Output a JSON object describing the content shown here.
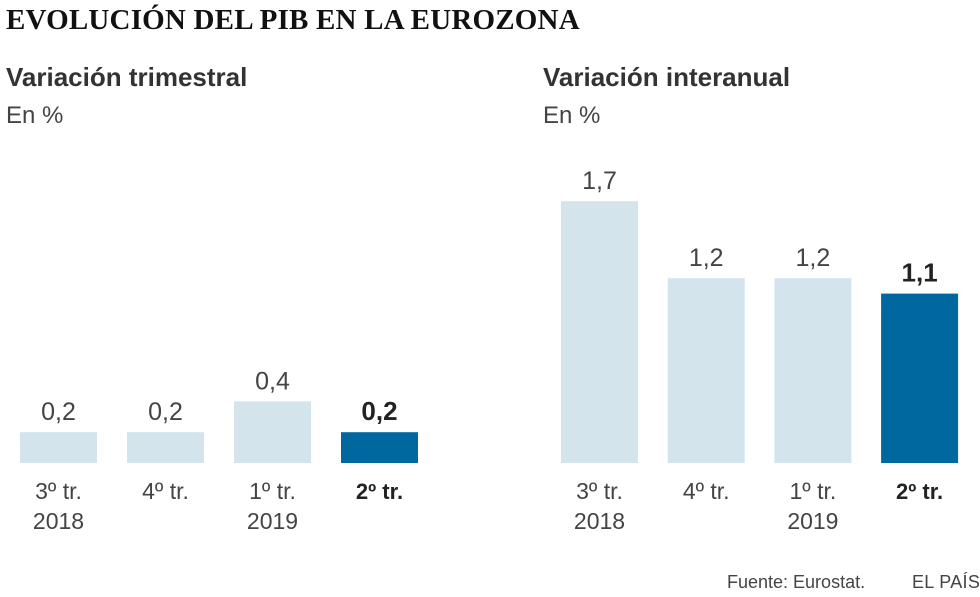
{
  "title": "EVOLUCIÓN DEL PIB EN LA EUROZONA",
  "source": "Fuente: Eurostat.",
  "brand": "EL PAÍS",
  "colors": {
    "bar": "#d3e4ec",
    "highlight": "#00689e"
  },
  "chart_data": [
    {
      "type": "bar",
      "title": "Variación trimestral",
      "unit": "En %",
      "categories": [
        [
          "3º tr.",
          "2018"
        ],
        [
          "4º tr.",
          ""
        ],
        [
          "1º tr.",
          "2019"
        ],
        [
          "2º tr.",
          ""
        ]
      ],
      "values": [
        0.2,
        0.2,
        0.4,
        0.2
      ],
      "labels": [
        "0,2",
        "0,2",
        "0,4",
        "0,2"
      ],
      "highlight_index": 3,
      "ylim": [
        0,
        1.7
      ]
    },
    {
      "type": "bar",
      "title": "Variación interanual",
      "unit": "En %",
      "categories": [
        [
          "3º tr.",
          "2018"
        ],
        [
          "4º tr.",
          ""
        ],
        [
          "1º tr.",
          "2019"
        ],
        [
          "2º tr.",
          ""
        ]
      ],
      "values": [
        1.7,
        1.2,
        1.2,
        1.1
      ],
      "labels": [
        "1,7",
        "1,2",
        "1,2",
        "1,1"
      ],
      "highlight_index": 3,
      "ylim": [
        0,
        1.7
      ]
    }
  ]
}
